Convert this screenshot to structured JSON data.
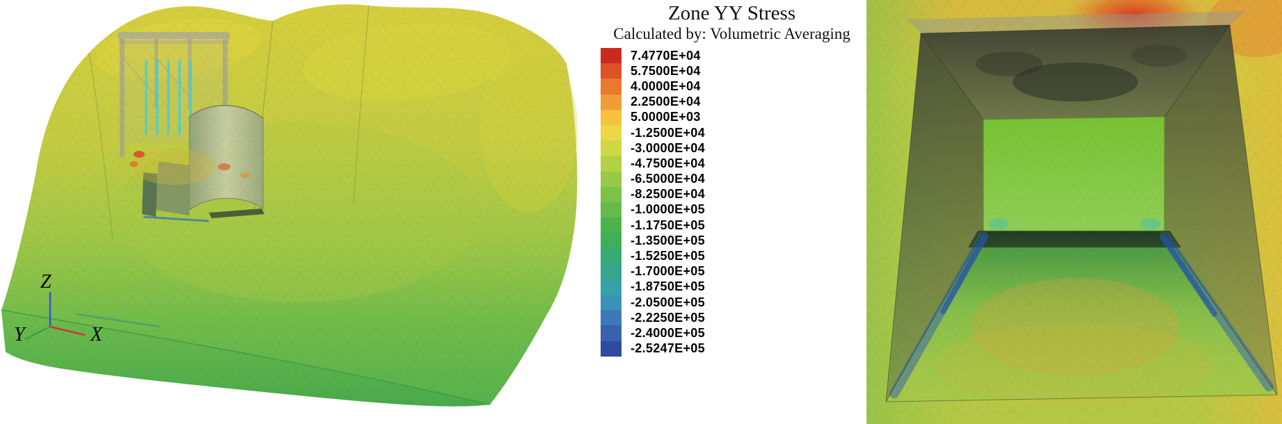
{
  "header": {
    "title": "Zone YY Stress",
    "subtitle": "Calculated by: Volumetric Averaging"
  },
  "legend": {
    "levels": [
      {
        "label": "7.4770E+04",
        "color": "#cc2a1f"
      },
      {
        "label": "5.7500E+04",
        "color": "#dd5226"
      },
      {
        "label": "4.0000E+04",
        "color": "#ea782e"
      },
      {
        "label": "2.2500E+04",
        "color": "#f29c36"
      },
      {
        "label": "5.0000E+03",
        "color": "#f6c13e"
      },
      {
        "label": "-1.2500E+04",
        "color": "#ead845"
      },
      {
        "label": "-3.0000E+04",
        "color": "#cdd844"
      },
      {
        "label": "-4.7500E+04",
        "color": "#b2d245"
      },
      {
        "label": "-6.5000E+04",
        "color": "#97ca46"
      },
      {
        "label": "-8.2500E+04",
        "color": "#7dc248"
      },
      {
        "label": "-1.0000E+05",
        "color": "#64ba4a"
      },
      {
        "label": "-1.1750E+05",
        "color": "#4cb24b"
      },
      {
        "label": "-1.3500E+05",
        "color": "#3fae58"
      },
      {
        "label": "-1.5250E+05",
        "color": "#38aa72"
      },
      {
        "label": "-1.7000E+05",
        "color": "#34a68c"
      },
      {
        "label": "-1.8750E+05",
        "color": "#36a2a6"
      },
      {
        "label": "-2.0500E+05",
        "color": "#3b92b8"
      },
      {
        "label": "-2.2250E+05",
        "color": "#3d78b8"
      },
      {
        "label": "-2.4000E+05",
        "color": "#3a60b0"
      },
      {
        "label": "-2.5247E+05",
        "color": "#2f4aa0"
      }
    ]
  },
  "axis_triad": {
    "z_label": "Z",
    "y_label": "Y",
    "x_label": "X",
    "z_color": "#3b55c4",
    "y_color": "#3aa43c",
    "x_color": "#cc3b2e"
  },
  "chart_data": {
    "type": "heatmap",
    "title": "Zone YY Stress",
    "subtitle": "Calculated by: Volumetric Averaging",
    "legend_position": "center",
    "value_min": -252470,
    "value_max": 74770,
    "contour_levels": [
      74770,
      57500,
      40000,
      22500,
      5000,
      -12500,
      -30000,
      -47500,
      -65000,
      -82500,
      -100000,
      -117500,
      -135000,
      -152500,
      -170000,
      -187500,
      -205000,
      -222500,
      -240000,
      -252470
    ],
    "tick_labels": [
      "7.4770E+04",
      "5.7500E+04",
      "4.0000E+04",
      "2.2500E+04",
      "5.0000E+03",
      "-1.2500E+04",
      "-3.0000E+04",
      "-4.7500E+04",
      "-6.5000E+04",
      "-8.2500E+04",
      "-1.0000E+05",
      "-1.1750E+05",
      "-1.3500E+05",
      "-1.5250E+05",
      "-1.7000E+05",
      "-1.8750E+05",
      "-2.0500E+05",
      "-2.2250E+05",
      "-2.4000E+05",
      "-2.5247E+05"
    ],
    "colormap": [
      "#cc2a1f",
      "#dd5226",
      "#ea782e",
      "#f29c36",
      "#f6c13e",
      "#ead845",
      "#cdd844",
      "#b2d245",
      "#97ca46",
      "#7dc248",
      "#64ba4a",
      "#4cb24b",
      "#3fae58",
      "#38aa72",
      "#34a68c",
      "#36a2a6",
      "#3b92b8",
      "#3d78b8",
      "#3a60b0",
      "#2f4aa0"
    ],
    "views": [
      {
        "name": "full-model-3d"
      },
      {
        "name": "excavation-detail-3d"
      }
    ]
  }
}
